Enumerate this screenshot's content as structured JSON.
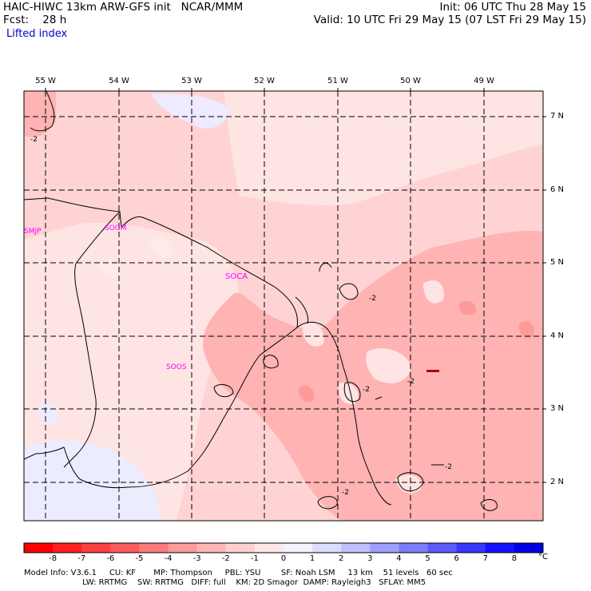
{
  "header": {
    "model_title": "HAIC-HIWC 13km ARW-GFS init",
    "org": "NCAR/MMM",
    "fcst_label": "Fcst:",
    "fcst_value": "28 h",
    "field": "Lifted index",
    "init": "Init: 06 UTC Thu 28 May 15",
    "valid": "Valid: 10 UTC Fri 29 May 15 (07 LST Fri 29 May 15)"
  },
  "axes": {
    "longitudes": [
      "55 W",
      "54 W",
      "53 W",
      "52 W",
      "51 W",
      "50 W",
      "49 W"
    ],
    "latitudes": [
      "7 N",
      "6 N",
      "5 N",
      "4 N",
      "3 N",
      "2 N"
    ]
  },
  "stations": [
    "SMJP",
    "SOGM",
    "SOCA",
    "SOOS"
  ],
  "contour_labels": [
    "-2",
    "-2",
    "-2",
    "-2",
    "-2",
    "-2"
  ],
  "colorbar": {
    "ticks": [
      "-8",
      "-7",
      "-6",
      "-5",
      "-4",
      "-3",
      "-2",
      "-1",
      "0",
      "1",
      "2",
      "3",
      "4",
      "5",
      "6",
      "7",
      "8"
    ],
    "unit": "°C",
    "colors": [
      "#ff0000",
      "#ff2020",
      "#ff4040",
      "#ff5c5c",
      "#ff7a7a",
      "#ff9a9a",
      "#ffb6b6",
      "#ffd0d0",
      "#ffe8e8",
      "#f4f4ff",
      "#dcdcff",
      "#c0c0ff",
      "#9e9eff",
      "#7c7cff",
      "#5a5aff",
      "#3838ff",
      "#1414ff",
      "#0000e6"
    ]
  },
  "footer": {
    "line1": "Model Info: V3.6.1     CU: KF       MP: Thompson     PBL: YSU        SF: Noah LSM     13 km    51 levels   60 sec",
    "line2": "                       LW: RRTMG    SW: RRTMG   DIFF: full    KM: 2D Smagor  DAMP: Rayleigh3   SFLAY: MM5"
  },
  "map_colors": {
    "light_pink": "#ffd3d3",
    "pink": "#ffb3b3",
    "pale": "#ffe9e9",
    "faint_blue": "#eaeaff",
    "line": "#000000",
    "station": "#ff00ff"
  }
}
